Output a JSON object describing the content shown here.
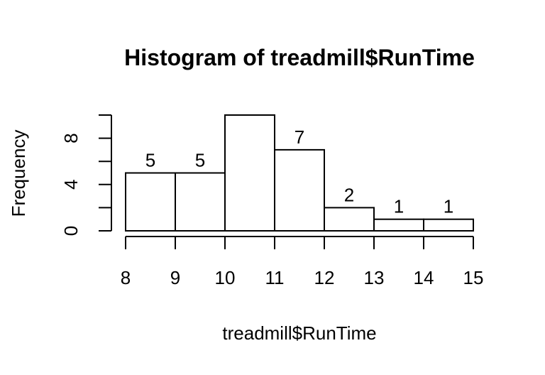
{
  "chart_data": {
    "type": "bar",
    "title": "Histogram of treadmill$RunTime",
    "xlabel": "treadmill$RunTime",
    "ylabel": "Frequency",
    "bins": [
      {
        "start": 8,
        "end": 9,
        "count": 5,
        "label": "5"
      },
      {
        "start": 9,
        "end": 10,
        "count": 5,
        "label": "5"
      },
      {
        "start": 10,
        "end": 11,
        "count": 10,
        "label": "10"
      },
      {
        "start": 11,
        "end": 12,
        "count": 7,
        "label": "7"
      },
      {
        "start": 12,
        "end": 13,
        "count": 2,
        "label": "2"
      },
      {
        "start": 13,
        "end": 14,
        "count": 1,
        "label": "1"
      },
      {
        "start": 14,
        "end": 15,
        "count": 1,
        "label": "1"
      }
    ],
    "x_ticks": [
      "8",
      "9",
      "10",
      "11",
      "12",
      "13",
      "14",
      "15"
    ],
    "y_ticks": [
      0,
      2,
      4,
      6,
      8,
      10
    ],
    "y_tick_labels": [
      "0",
      "4",
      "8"
    ],
    "xlim": [
      8,
      15
    ],
    "ylim": [
      0,
      10
    ],
    "grid": false
  }
}
